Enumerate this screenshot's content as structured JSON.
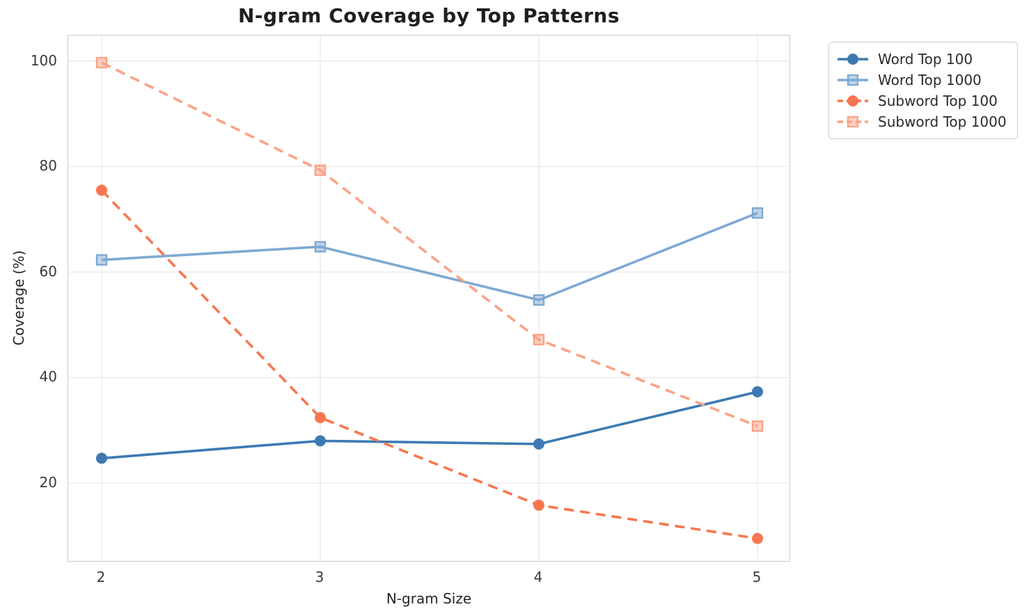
{
  "title": "N-gram Coverage by Top Patterns",
  "chart_data": {
    "type": "line",
    "title": "N-gram Coverage by Top Patterns",
    "xlabel": "N-gram Size",
    "ylabel": "Coverage (%)",
    "x": [
      2,
      3,
      4,
      5
    ],
    "x_tick_labels": [
      "2",
      "3",
      "4",
      "5"
    ],
    "y_tick_labels": [
      "20",
      "40",
      "60",
      "80",
      "100"
    ],
    "y_ticks": [
      20,
      40,
      60,
      80,
      100
    ],
    "x_gridlines": [
      2,
      3,
      4,
      5
    ],
    "y_gridlines": [
      20,
      40,
      60,
      80,
      100
    ],
    "xlim": [
      1.847,
      5.153
    ],
    "ylim": [
      4.96,
      104.84
    ],
    "grid": true,
    "legend_position": "outside-top-right",
    "series": [
      {
        "name": "Word Top 100",
        "color": "#3d7ab3",
        "marker": "circle",
        "line": "solid",
        "values": [
          24.7,
          28.0,
          27.4,
          37.3
        ]
      },
      {
        "name": "Word Top 1000",
        "color": "#7ea9d2",
        "marker": "square",
        "line": "solid",
        "values": [
          62.3,
          64.8,
          54.7,
          71.2
        ]
      },
      {
        "name": "Subword Top 100",
        "color": "#f8764f",
        "marker": "circle",
        "line": "dashed",
        "values": [
          75.5,
          32.4,
          15.8,
          9.5
        ]
      },
      {
        "name": "Subword Top 1000",
        "color": "#fba286",
        "marker": "square",
        "line": "dashed",
        "values": [
          99.7,
          79.3,
          47.2,
          30.8
        ]
      }
    ]
  },
  "colors": {
    "grid": "#e9e9e9",
    "spine": "#cccccc",
    "title_text": "#1f1f1f",
    "tick_text": "#3a3a3a"
  }
}
